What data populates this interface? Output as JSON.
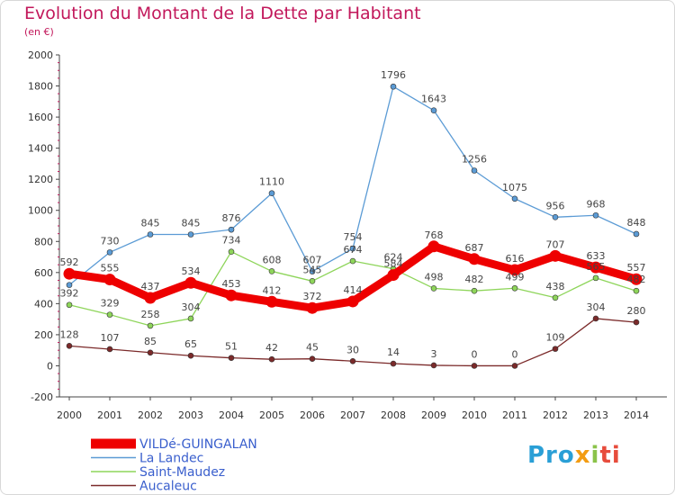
{
  "header": {
    "title": "Evolution du Montant de la Dette par Habitant",
    "unit": "(en €)"
  },
  "logo": {
    "parts": [
      "Pro",
      "x",
      "i",
      "ti"
    ]
  },
  "chart_data": {
    "type": "line",
    "title": "Evolution du Montant de la Dette par Habitant",
    "subtitle": "(en €)",
    "xlabel": "",
    "ylabel": "",
    "x": [
      "2000",
      "2001",
      "2002",
      "2003",
      "2004",
      "2005",
      "2006",
      "2007",
      "2008",
      "2009",
      "2010",
      "2011",
      "2012",
      "2013",
      "2014"
    ],
    "ylim": [
      -200,
      2000
    ],
    "yticks": [
      -200,
      0,
      200,
      400,
      600,
      800,
      1000,
      1200,
      1400,
      1600,
      1800,
      2000
    ],
    "grid": false,
    "legend_position": "bottom-left",
    "series": [
      {
        "name": "La Landec",
        "color": "#5b9bd5",
        "values": [
          520,
          730,
          845,
          845,
          876,
          1110,
          607,
          754,
          1796,
          1643,
          1256,
          1075,
          956,
          968,
          848
        ],
        "labels": [
          "",
          "730",
          "845",
          "845",
          "876",
          "1110",
          "607",
          "754",
          "1796",
          "1643",
          "1256",
          "1075",
          "956",
          "968",
          "848"
        ]
      },
      {
        "name": "Saint-Maudez",
        "color": "#8ed55a",
        "values": [
          392,
          329,
          258,
          304,
          734,
          608,
          545,
          674,
          624,
          498,
          482,
          499,
          438,
          565,
          482
        ],
        "labels": [
          "392",
          "329",
          "258",
          "304",
          "734",
          "608",
          "545",
          "674",
          "624",
          "498",
          "482",
          "499",
          "438",
          "565",
          "482"
        ]
      },
      {
        "name": "Aucaleuc",
        "color": "#7b2a2a",
        "values": [
          128,
          107,
          85,
          65,
          51,
          42,
          45,
          30,
          14,
          3,
          0,
          0,
          109,
          304,
          280
        ],
        "labels": [
          "128",
          "107",
          "85",
          "65",
          "51",
          "42",
          "45",
          "30",
          "14",
          "3",
          "0",
          "0",
          "109",
          "304",
          "280"
        ]
      },
      {
        "name": "VILDé-GUINGALAN",
        "color": "#ee0000",
        "values": [
          592,
          555,
          437,
          534,
          453,
          412,
          372,
          414,
          584,
          768,
          687,
          616,
          707,
          633,
          557
        ],
        "labels": [
          "592",
          "555",
          "437",
          "534",
          "453",
          "412",
          "372",
          "414",
          "584",
          "768",
          "687",
          "616",
          "707",
          "633",
          "557"
        ]
      }
    ],
    "legend_order": [
      "VILDé-GUINGALAN",
      "La Landec",
      "Saint-Maudez",
      "Aucaleuc"
    ]
  }
}
